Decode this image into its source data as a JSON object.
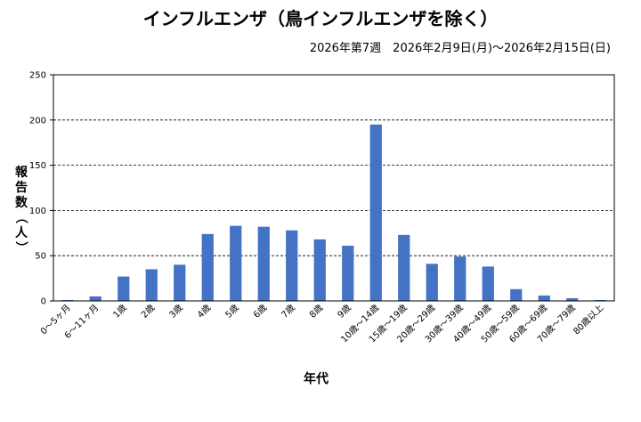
{
  "chart_data": {
    "type": "bar",
    "title": "インフルエンザ（鳥インフルエンザを除く）",
    "subtitle": "2026年第7週　2026年2月9日(月)～2026年2月15日(日)",
    "xlabel": "年代",
    "ylabel_chars": [
      "報",
      "告",
      "数",
      "（",
      "人",
      "）"
    ],
    "ylim": [
      0,
      250
    ],
    "yticks": [
      "0",
      "50",
      "100",
      "150",
      "200",
      "250"
    ],
    "grid": "horizontal-dashed",
    "bar_color": "#4472C4",
    "categories": [
      "0～5ヶ月",
      "6～11ヶ月",
      "1歳",
      "2歳",
      "3歳",
      "4歳",
      "5歳",
      "6歳",
      "7歳",
      "8歳",
      "9歳",
      "10歳～14歳",
      "15歳～19歳",
      "20歳～29歳",
      "30歳～39歳",
      "40歳～49歳",
      "50歳～59歳",
      "60歳～69歳",
      "70歳～79歳",
      "80歳以上"
    ],
    "values": [
      1,
      5,
      27,
      35,
      40,
      74,
      83,
      82,
      78,
      68,
      61,
      195,
      73,
      41,
      49,
      38,
      13,
      6,
      3,
      1
    ]
  }
}
